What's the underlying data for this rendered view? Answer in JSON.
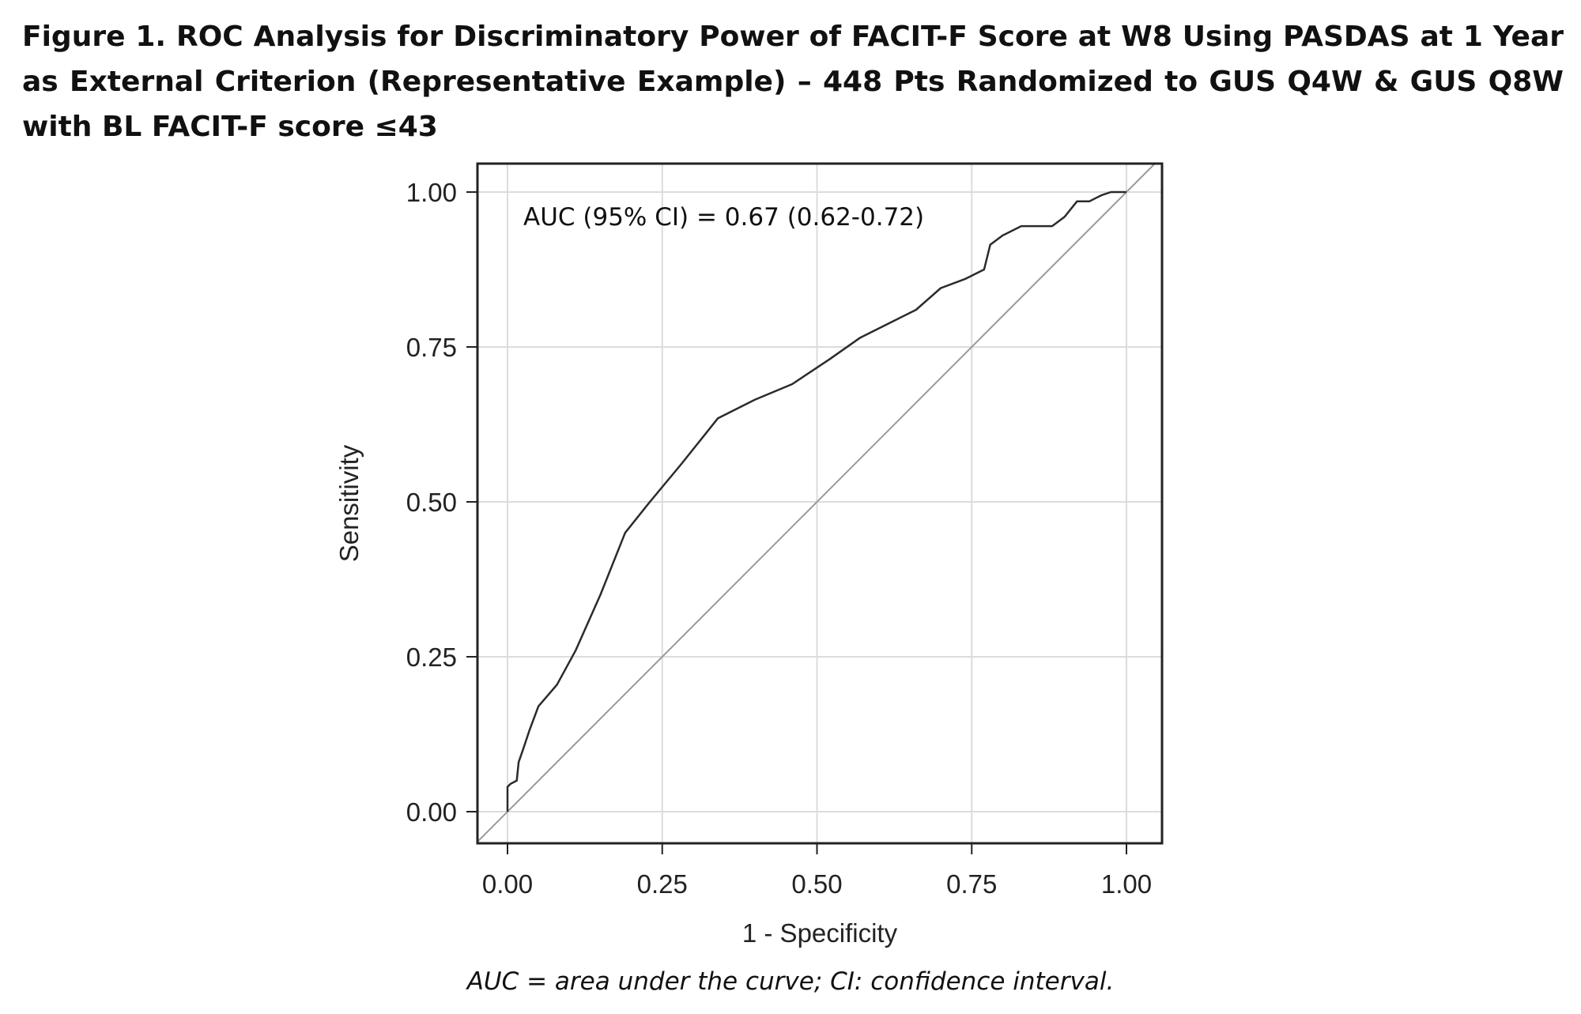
{
  "figure": {
    "caption": "Figure 1. ROC Analysis for Discriminatory Power of FACIT-F Score at W8 Using PASDAS at 1 Year as External Criterion (Representative Example) – 448 Pts Randomized to GUS Q4W & GUS Q8W with BL FACIT-F score ≤43",
    "footnote": "AUC = area under the curve; CI: confidence interval."
  },
  "chart_data": {
    "type": "line",
    "title": "",
    "xlabel": "1 - Specificity",
    "ylabel": "Sensitivity",
    "xlim": [
      0,
      1
    ],
    "ylim": [
      0,
      1
    ],
    "x_ticks": [
      "0.00",
      "0.25",
      "0.50",
      "0.75",
      "1.00"
    ],
    "y_ticks": [
      "0.00",
      "0.25",
      "0.50",
      "0.75",
      "1.00"
    ],
    "grid": true,
    "annotation": "AUC (95% CI) = 0.67 (0.62-0.72)",
    "colors": {
      "roc": "#2b2b2b",
      "reference": "#9a9a9a",
      "grid": "#dcdcdc",
      "frame": "#222222"
    },
    "series": [
      {
        "role": "roc-curve",
        "x": [
          0.0,
          0.0,
          0.005,
          0.015,
          0.018,
          0.025,
          0.035,
          0.05,
          0.08,
          0.11,
          0.15,
          0.19,
          0.23,
          0.28,
          0.34,
          0.4,
          0.46,
          0.52,
          0.57,
          0.62,
          0.66,
          0.7,
          0.74,
          0.77,
          0.78,
          0.8,
          0.83,
          0.88,
          0.9,
          0.92,
          0.94,
          0.95,
          0.96,
          0.975,
          1.0
        ],
        "y": [
          0.0,
          0.04,
          0.045,
          0.05,
          0.08,
          0.1,
          0.13,
          0.17,
          0.205,
          0.26,
          0.35,
          0.45,
          0.5,
          0.56,
          0.635,
          0.665,
          0.69,
          0.73,
          0.765,
          0.79,
          0.81,
          0.845,
          0.86,
          0.875,
          0.915,
          0.93,
          0.945,
          0.945,
          0.96,
          0.985,
          0.985,
          0.99,
          0.995,
          1.0,
          1.0
        ]
      },
      {
        "role": "reference-line",
        "x": [
          0,
          1
        ],
        "y": [
          0,
          1
        ]
      }
    ]
  }
}
